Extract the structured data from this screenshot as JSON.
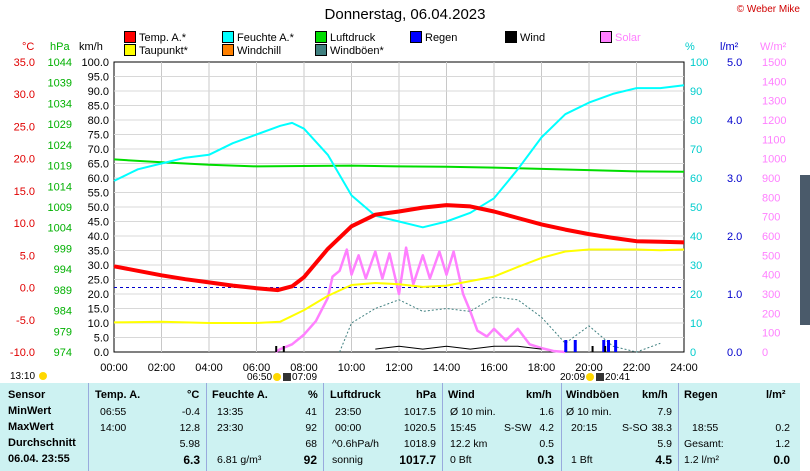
{
  "title": "Donnerstag, 06.04.2023",
  "copyright": "© Weber Mike",
  "legend": [
    {
      "label": "Temp. A.*",
      "color": "#ff0000"
    },
    {
      "label": "Feuchte A.*",
      "color": "#00ffff"
    },
    {
      "label": "Luftdruck",
      "color": "#00dd00"
    },
    {
      "label": "Regen",
      "color": "#0000ff"
    },
    {
      "label": "Wind",
      "color": "#000000"
    },
    {
      "label": "Solar",
      "color": "#ff80ff"
    },
    {
      "label": "Taupunkt*",
      "color": "#ffff00"
    },
    {
      "label": "Windchill",
      "color": "#ff8000"
    },
    {
      "label": "Windböen*",
      "color": "#408080"
    }
  ],
  "axes": {
    "temp_unit": "°C",
    "hpa_unit": "hPa",
    "kmh_unit": "km/h",
    "pct_unit": "%",
    "rain_unit": "l/m²",
    "solar_unit": "W/m²",
    "temp_ticks": [
      "35.0",
      "30.0",
      "25.0",
      "20.0",
      "15.0",
      "10.0",
      "5.0",
      "0.0",
      "-5.0",
      "-10.0"
    ],
    "hpa_ticks": [
      "1044",
      "1039",
      "1034",
      "1029",
      "1024",
      "1019",
      "1014",
      "1009",
      "1004",
      "999",
      "994",
      "989",
      "984",
      "979",
      "974"
    ],
    "kmh_ticks": [
      "100.0",
      "95.0",
      "90.0",
      "85.0",
      "80.0",
      "75.0",
      "70.0",
      "65.0",
      "60.0",
      "55.0",
      "50.0",
      "45.0",
      "40.0",
      "35.0",
      "30.0",
      "25.0",
      "20.0",
      "15.0",
      "10.0",
      "5.0",
      "0.0"
    ],
    "pct_ticks": [
      "100",
      "90",
      "80",
      "70",
      "60",
      "50",
      "40",
      "30",
      "20",
      "10",
      "0"
    ],
    "rain_ticks": [
      "5.0",
      "4.0",
      "3.0",
      "2.0",
      "1.0",
      "0.0"
    ],
    "solar_ticks": [
      "1500",
      "1400",
      "1300",
      "1200",
      "1100",
      "1000",
      "900",
      "800",
      "700",
      "600",
      "500",
      "400",
      "300",
      "200",
      "100",
      "0"
    ],
    "x_ticks": [
      "00:00",
      "02:00",
      "04:00",
      "06:00",
      "08:00",
      "10:00",
      "12:00",
      "14:00",
      "16:00",
      "18:00",
      "20:00",
      "22:00",
      "24:00"
    ]
  },
  "chart_data": {
    "type": "line",
    "x_unit": "hour",
    "xlim": [
      0,
      24
    ],
    "series": [
      {
        "name": "Temp. A.*",
        "unit": "°C",
        "x": [
          0,
          1,
          2,
          3,
          4,
          5,
          6,
          6.9,
          7.5,
          8,
          9,
          10,
          11,
          12,
          13,
          14,
          15,
          16,
          17,
          18,
          19,
          20,
          21,
          22,
          23,
          24
        ],
        "values": [
          3.3,
          2.6,
          1.9,
          1.3,
          0.8,
          0.3,
          -0.1,
          -0.4,
          0.2,
          1.6,
          6.0,
          9.5,
          11.3,
          11.8,
          12.4,
          12.8,
          12.6,
          11.8,
          10.8,
          9.8,
          9.0,
          8.3,
          7.7,
          7.2,
          7.1,
          7.0
        ]
      },
      {
        "name": "Taupunkt*",
        "unit": "°C",
        "x": [
          0,
          2,
          4,
          6,
          7,
          8,
          9,
          10,
          11,
          12,
          13,
          14,
          15,
          16,
          17,
          18,
          19,
          20,
          21,
          22,
          23,
          24
        ],
        "values": [
          -5.4,
          -5.3,
          -5.5,
          -5.5,
          -5.3,
          -3.5,
          -1.3,
          0.4,
          0.7,
          0.5,
          0.1,
          0.3,
          1.0,
          1.7,
          3.2,
          4.6,
          5.6,
          5.9,
          5.9,
          5.9,
          5.8,
          5.9
        ]
      },
      {
        "name": "Feuchte A.*",
        "unit": "%",
        "x": [
          0,
          1,
          2,
          3,
          4,
          5,
          6,
          7,
          7.5,
          8,
          9,
          10,
          11,
          12,
          13,
          14,
          15,
          16,
          17,
          18,
          19,
          20,
          21,
          22,
          23,
          24
        ],
        "values": [
          59,
          63,
          65,
          67,
          68,
          72,
          75,
          78,
          79,
          77,
          68,
          54,
          47,
          45,
          43,
          45,
          48,
          53,
          63,
          74,
          82,
          86,
          89,
          91,
          91,
          92
        ]
      },
      {
        "name": "Luftdruck",
        "unit": "hPa",
        "x": [
          0,
          2,
          4,
          6,
          8,
          10,
          12,
          14,
          16,
          18,
          20,
          22,
          24
        ],
        "values": [
          1020.5,
          1019.8,
          1019.2,
          1018.8,
          1018.9,
          1019.0,
          1018.8,
          1018.7,
          1018.5,
          1018.2,
          1017.9,
          1017.6,
          1017.5
        ]
      },
      {
        "name": "Solar",
        "unit": "W/m²",
        "x": [
          6.8,
          7.0,
          7.5,
          8.0,
          8.5,
          9.0,
          9.2,
          9.5,
          9.8,
          10.0,
          10.3,
          10.6,
          11.0,
          11.3,
          11.6,
          12.0,
          12.3,
          12.6,
          13.0,
          13.3,
          13.7,
          14.0,
          14.3,
          14.7,
          15.0,
          15.3,
          15.7,
          16.0,
          16.5,
          17.0,
          17.5,
          18.0,
          18.5,
          19.0
        ],
        "values": [
          0,
          15,
          40,
          90,
          160,
          280,
          390,
          420,
          530,
          400,
          500,
          380,
          520,
          380,
          510,
          300,
          540,
          350,
          500,
          380,
          520,
          400,
          520,
          300,
          210,
          110,
          80,
          120,
          60,
          120,
          40,
          20,
          5,
          0
        ]
      },
      {
        "name": "Windböen*",
        "unit": "km/h",
        "x": [
          9.5,
          10,
          11,
          12,
          13,
          14,
          15,
          16,
          17,
          18,
          19,
          20,
          21,
          22,
          23
        ],
        "values": [
          0,
          10,
          15,
          18,
          14,
          15,
          14,
          19,
          18,
          12,
          3,
          9,
          2,
          0,
          3
        ]
      },
      {
        "name": "Wind",
        "unit": "km/h",
        "x": [
          11,
          12,
          13,
          14,
          15,
          16,
          17,
          18
        ],
        "values": [
          1,
          2,
          1,
          2,
          1,
          2,
          2,
          1
        ]
      }
    ],
    "rain_hours": [
      19.0,
      19.4,
      20.6,
      20.8,
      21.1
    ]
  },
  "info": {
    "time": "13:10",
    "sunrise": "06:50",
    "sunrise2": "07:09",
    "sunset": "20:09",
    "sunset2": "20:41"
  },
  "table": {
    "sensor": {
      "hd": "Sensor",
      "r1": "MinWert",
      "r2": "MaxWert",
      "r3": "Durchschnitt",
      "r4": "06.04. 23:55"
    },
    "temp": {
      "hd": "Temp. A.",
      "unit": "°C",
      "r1a": "06:55",
      "r1b": "-0.4",
      "r2a": "14:00",
      "r2b": "12.8",
      "r3b": "5.98",
      "r4b": "6.3"
    },
    "feuchte": {
      "hd": "Feuchte A.",
      "unit": "%",
      "r1a": "13:35",
      "r1b": "41",
      "r2a": "23:30",
      "r2b": "92",
      "r3b": "68",
      "r4a": "6.81 g/m³",
      "r4b": "92"
    },
    "luft": {
      "hd": "Luftdruck",
      "unit": "hPa",
      "r1a": "23:50",
      "r1b": "1017.5",
      "r2a": "00:00",
      "r2b": "1020.5",
      "r3a": "^0.6hPa/h",
      "r3b": "1018.9",
      "r4a": "sonnig",
      "r4b": "1017.7"
    },
    "wind": {
      "hd": "Wind",
      "unit": "km/h",
      "r1a": "Ø 10 min.",
      "r1b": "1.6",
      "r2a": "15:45",
      "r2m": "S-SW",
      "r2b": "4.2",
      "r3a": "12.2 km",
      "r3b": "0.5",
      "r4a": "0 Bft",
      "r4b": "0.3"
    },
    "boen": {
      "hd": "Windböen",
      "unit": "km/h",
      "r1a": "Ø 10 min.",
      "r1b": "7.9",
      "r2a": "20:15",
      "r2m": "S-SO",
      "r2b": "38.3",
      "r3b": "5.9",
      "r4a": "1 Bft",
      "r4b": "4.5"
    },
    "regen": {
      "hd": "Regen",
      "unit": "l/m²",
      "r2a": "18:55",
      "r2b": "0.2",
      "r3a": "Gesamt:",
      "r3b": "1.2",
      "r4a": "1.2 l/m²",
      "r4b": "0.0"
    }
  }
}
